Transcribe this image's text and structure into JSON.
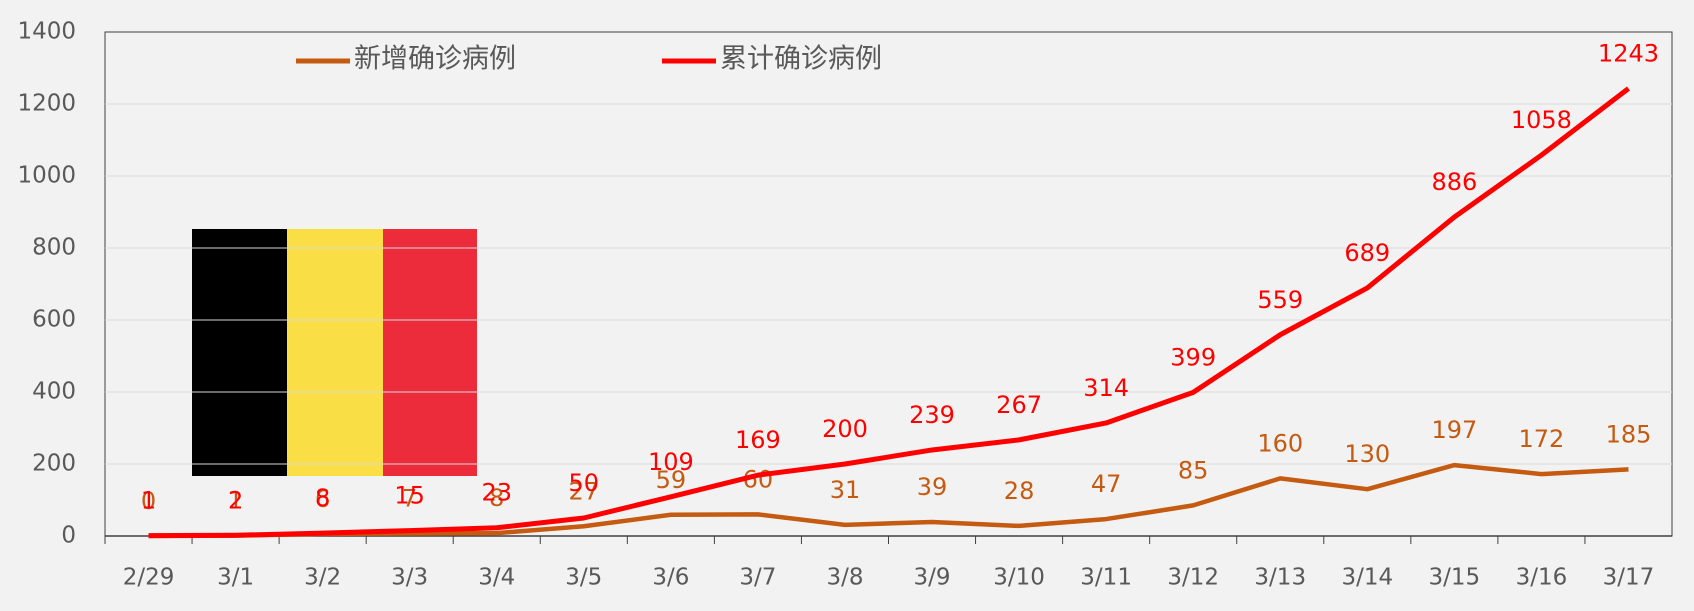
{
  "chart_data": {
    "type": "line",
    "categories": [
      "2/29",
      "3/1",
      "3/2",
      "3/3",
      "3/4",
      "3/5",
      "3/6",
      "3/7",
      "3/8",
      "3/9",
      "3/10",
      "3/11",
      "3/12",
      "3/13",
      "3/14",
      "3/15",
      "3/16",
      "3/17"
    ],
    "series": [
      {
        "name": "新增确诊病例",
        "color": "#c55a11",
        "values": [
          0,
          1,
          6,
          7,
          8,
          27,
          59,
          60,
          31,
          39,
          28,
          47,
          85,
          160,
          130,
          197,
          172,
          185
        ]
      },
      {
        "name": "累计确诊病例",
        "color": "#ff0000",
        "values": [
          1,
          2,
          8,
          15,
          23,
          50,
          109,
          169,
          200,
          239,
          267,
          314,
          399,
          559,
          689,
          886,
          1058,
          1243
        ]
      }
    ],
    "ylim": [
      0,
      1400
    ],
    "yticks": [
      0,
      200,
      400,
      600,
      800,
      1000,
      1200,
      1400
    ],
    "grid": true
  }
}
